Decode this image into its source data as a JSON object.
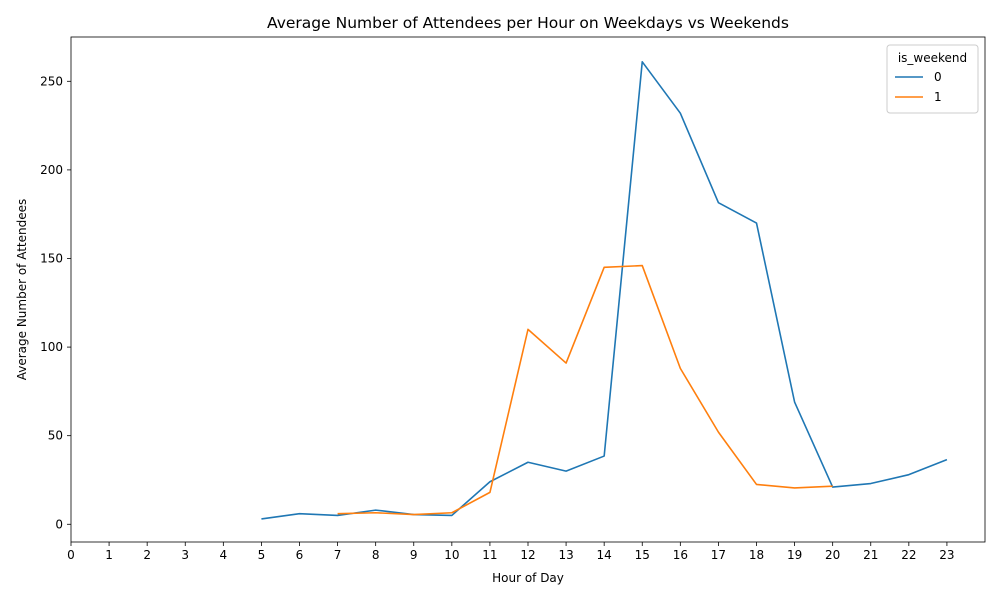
{
  "chart_data": {
    "type": "line",
    "title": "Average Number of Attendees per Hour on Weekdays vs Weekends",
    "xlabel": "Hour of Day",
    "ylabel": "Average Number of Attendees",
    "x_ticks": [
      0,
      1,
      2,
      3,
      4,
      5,
      6,
      7,
      8,
      9,
      10,
      11,
      12,
      13,
      14,
      15,
      16,
      17,
      18,
      19,
      20,
      21,
      22,
      23
    ],
    "y_ticks": [
      0,
      50,
      100,
      150,
      200,
      250
    ],
    "xlim": [
      0,
      24
    ],
    "ylim": [
      -10,
      275
    ],
    "grid": false,
    "legend": {
      "title": "is_weekend",
      "placement": "top-right"
    },
    "series": [
      {
        "name": "0",
        "color": "#1f77b4",
        "x": [
          5,
          6,
          7,
          8,
          9,
          10,
          11,
          12,
          13,
          14,
          15,
          16,
          17,
          18,
          19,
          20,
          21,
          22,
          23
        ],
        "values": [
          3,
          6,
          5,
          8,
          5.5,
          5,
          24,
          35,
          30,
          38.5,
          261,
          232,
          181.5,
          170,
          69,
          21,
          23,
          28,
          36.5
        ]
      },
      {
        "name": "1",
        "color": "#ff7f0e",
        "x": [
          7,
          8,
          9,
          10,
          11,
          12,
          13,
          14,
          15,
          16,
          17,
          18,
          19,
          20
        ],
        "values": [
          6,
          6.5,
          5.5,
          6.5,
          18,
          110,
          91,
          145,
          146,
          88,
          52,
          22.5,
          20.5,
          21.5
        ]
      }
    ]
  }
}
